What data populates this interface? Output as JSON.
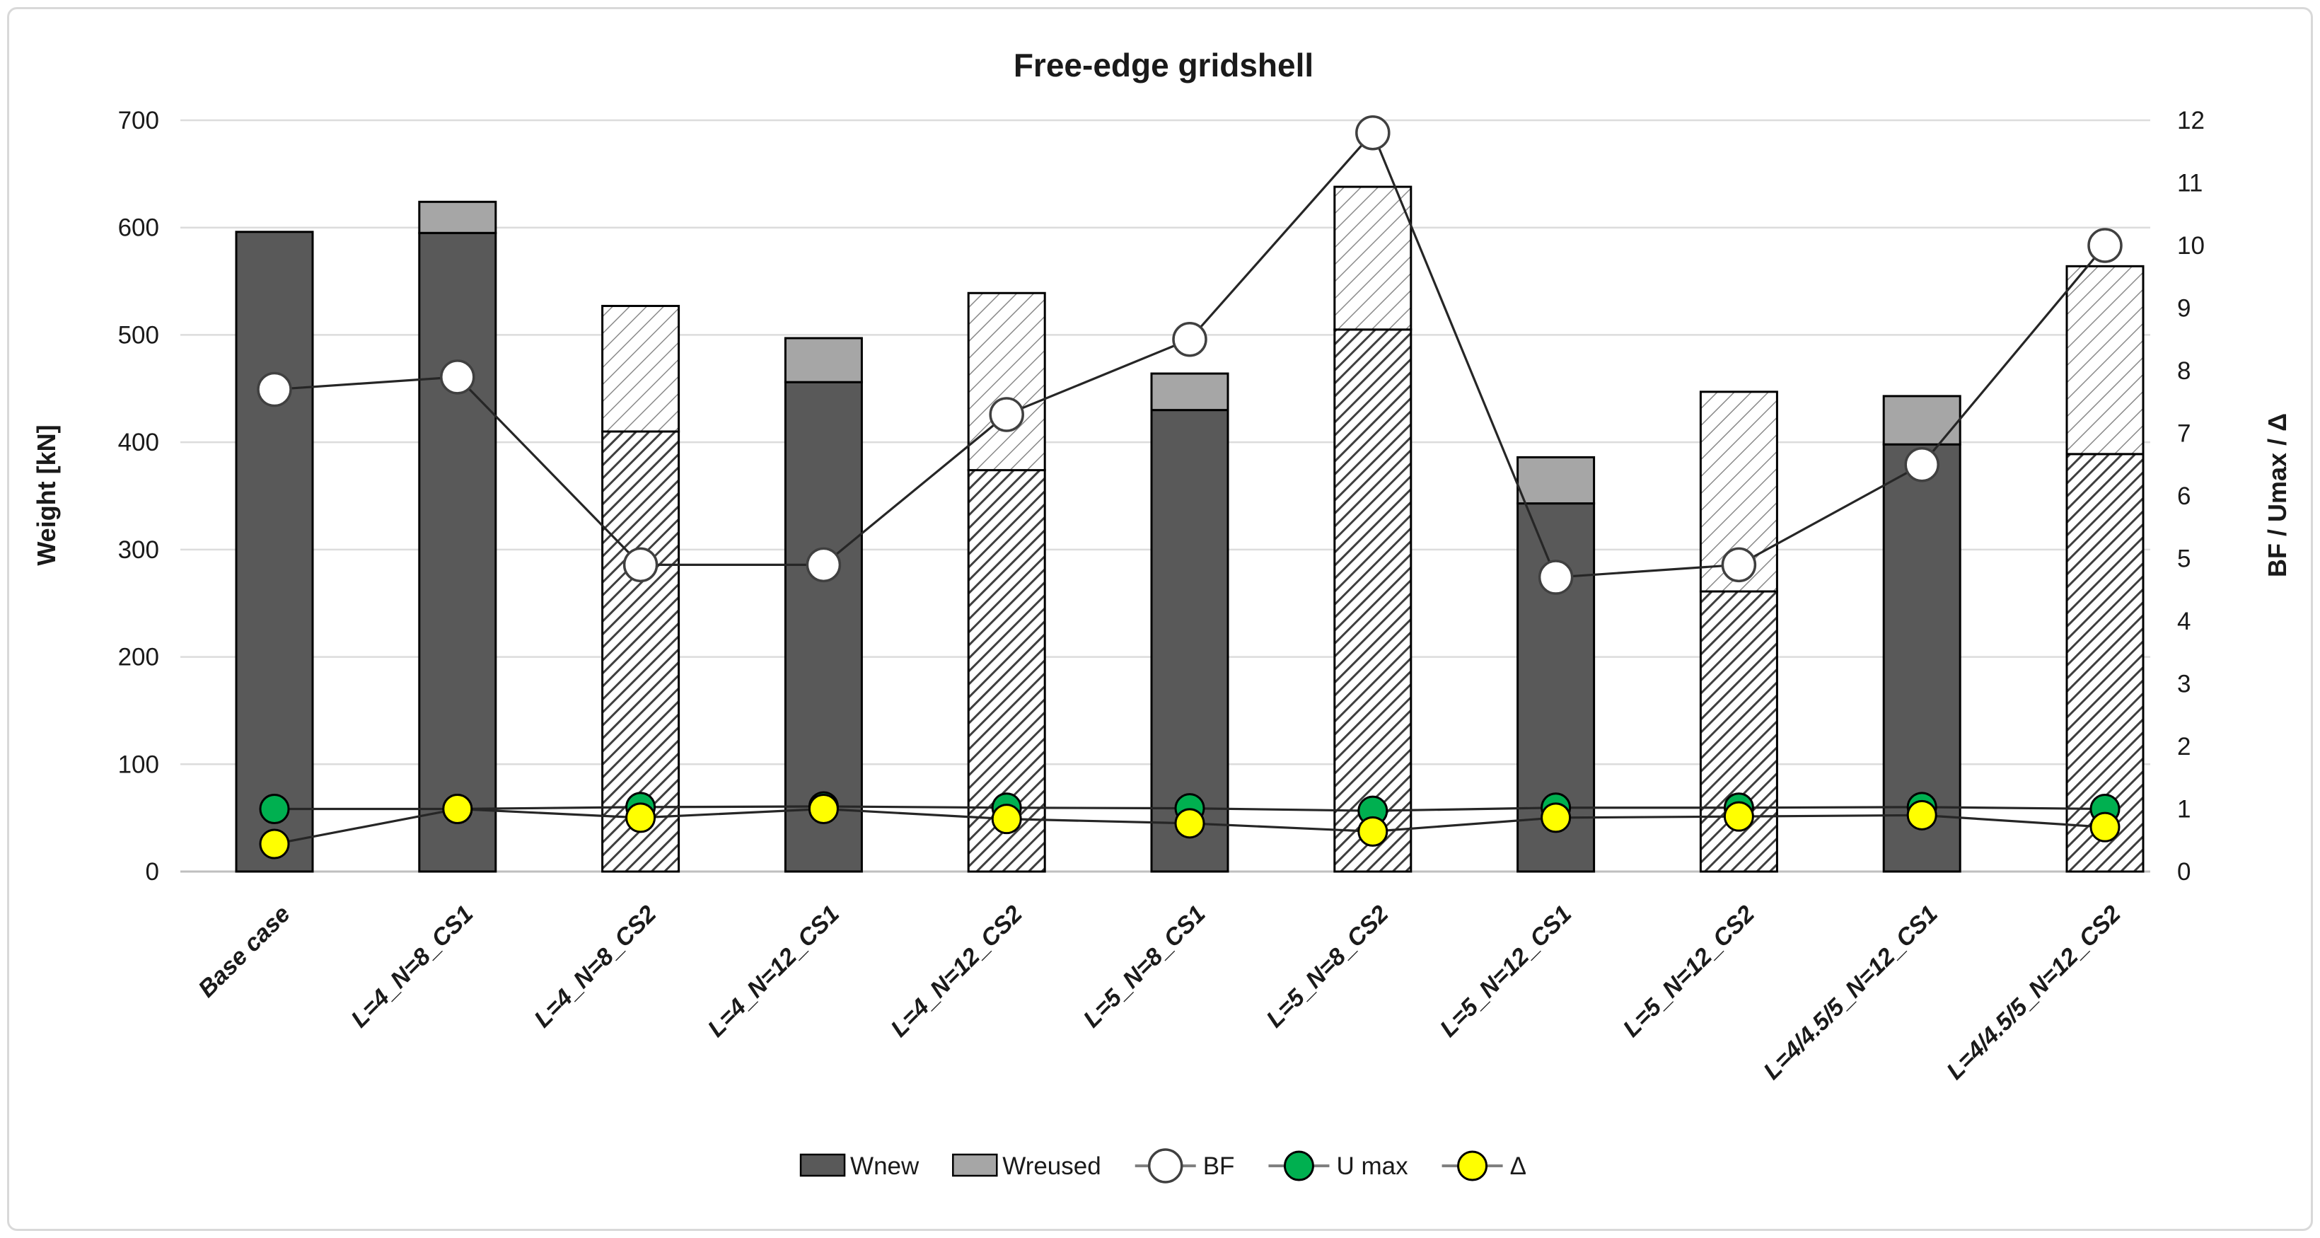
{
  "chart_data": {
    "type": "bar",
    "subtype": "stacked-bars-with-line-overlay",
    "title": "Free-edge gridshell",
    "categories": [
      "Base case",
      "L=4_N=8_CS1",
      "L=4_N=8_CS2",
      "L=4_N=12_CS1",
      "L=4_N=12_CS2",
      "L=5_N=8_CS1",
      "L=5_N=8_CS2",
      "L=5_N=12_CS1",
      "L=5_N=12_CS2",
      "L=4/4.5/5_N=12_CS1",
      "L=4/4.5/5_N=12_CS2"
    ],
    "hatched_categories": [
      false,
      false,
      true,
      false,
      true,
      false,
      true,
      false,
      true,
      false,
      true
    ],
    "series": [
      {
        "name": "Wnew",
        "type": "bar",
        "axis": "left",
        "color": "#595959",
        "values": [
          596,
          595,
          410,
          456,
          374,
          430,
          505,
          343,
          261,
          398,
          389
        ]
      },
      {
        "name": "Wreused",
        "type": "bar",
        "axis": "left",
        "color": "#a6a6a6",
        "values": [
          0,
          29,
          117,
          41,
          165,
          34,
          133,
          43,
          186,
          45,
          175
        ]
      },
      {
        "name": "BF",
        "type": "line",
        "axis": "right",
        "marker": "#ffffff",
        "values": [
          7.7,
          7.9,
          4.9,
          4.9,
          7.3,
          8.5,
          11.8,
          4.7,
          4.9,
          6.5,
          10.0
        ]
      },
      {
        "name": "U max",
        "type": "line",
        "axis": "right",
        "marker": "#00b050",
        "values": [
          1.0,
          1.0,
          1.03,
          1.04,
          1.02,
          1.01,
          0.97,
          1.02,
          1.02,
          1.03,
          1.0
        ]
      },
      {
        "name": "Δ",
        "type": "line",
        "axis": "right",
        "marker": "#ffff00",
        "values": [
          0.44,
          1.0,
          0.86,
          1.0,
          0.84,
          0.77,
          0.64,
          0.86,
          0.88,
          0.9,
          0.71
        ]
      }
    ],
    "left_axis": {
      "label": "Weight [kN]",
      "min": 0,
      "max": 700,
      "step": 100,
      "ticks": [
        "0",
        "100",
        "200",
        "300",
        "400",
        "500",
        "600",
        "700"
      ]
    },
    "right_axis": {
      "label": "BF / Umax / Δ",
      "min": 0,
      "max": 12,
      "step": 1,
      "ticks": [
        "0",
        "1",
        "2",
        "3",
        "4",
        "5",
        "6",
        "7",
        "8",
        "9",
        "10",
        "11",
        "12"
      ]
    },
    "legend": [
      {
        "label": "Wnew",
        "kind": "bar",
        "color": "#595959"
      },
      {
        "label": "Wreused",
        "kind": "bar",
        "color": "#a6a6a6"
      },
      {
        "label": "BF",
        "kind": "line",
        "color": "#ffffff"
      },
      {
        "label": "U max",
        "kind": "line",
        "color": "#00b050"
      },
      {
        "label": "Δ",
        "kind": "line",
        "color": "#ffff00"
      }
    ],
    "colors": {
      "bar_new": "#595959",
      "bar_reused": "#a6a6a6",
      "hatch_dense": "#3f3f3f",
      "hatch_light": "#8a8a8a",
      "marker_bf": "#ffffff",
      "marker_umax": "#00b050",
      "marker_delta": "#ffff00",
      "line": "#262626",
      "gridline": "#dcdcdc",
      "axis_line": "#bfbfbf"
    },
    "grid": "horizontal-only",
    "legend_position": "bottom-center"
  }
}
